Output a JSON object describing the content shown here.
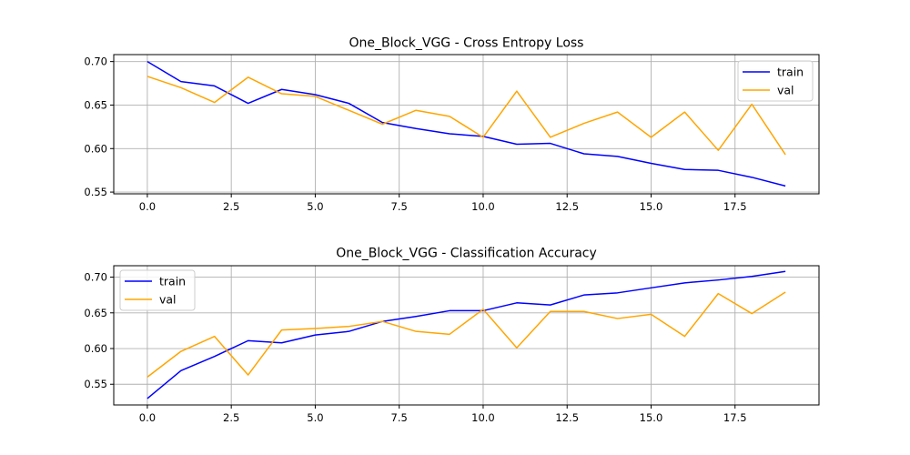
{
  "colors": {
    "train": "#0000ff",
    "val": "#ffa500"
  },
  "chart_data": [
    {
      "type": "line",
      "title": "One_Block_VGG - Cross Entropy Loss",
      "xlabel": "",
      "ylabel": "",
      "x": [
        0,
        1,
        2,
        3,
        4,
        5,
        6,
        7,
        8,
        9,
        10,
        11,
        12,
        13,
        14,
        15,
        16,
        17,
        18,
        19
      ],
      "xlim": [
        -1,
        20
      ],
      "ylim": [
        0.548,
        0.708
      ],
      "xticks": [
        0.0,
        2.5,
        5.0,
        7.5,
        10.0,
        12.5,
        15.0,
        17.5
      ],
      "xtick_labels": [
        "0.0",
        "2.5",
        "5.0",
        "7.5",
        "10.0",
        "12.5",
        "15.0",
        "17.5"
      ],
      "yticks": [
        0.55,
        0.6,
        0.65,
        0.7
      ],
      "ytick_labels": [
        "0.55",
        "0.60",
        "0.65",
        "0.70"
      ],
      "grid": true,
      "legend_position": "top-right",
      "series": [
        {
          "name": "train",
          "color": "#0000ff",
          "values": [
            0.7,
            0.677,
            0.672,
            0.652,
            0.668,
            0.662,
            0.652,
            0.63,
            0.623,
            0.617,
            0.614,
            0.605,
            0.606,
            0.594,
            0.591,
            0.583,
            0.576,
            0.575,
            0.567,
            0.557
          ]
        },
        {
          "name": "val",
          "color": "#ffa500",
          "values": [
            0.683,
            0.67,
            0.653,
            0.682,
            0.663,
            0.66,
            0.644,
            0.628,
            0.644,
            0.637,
            0.613,
            0.666,
            0.613,
            0.629,
            0.642,
            0.613,
            0.642,
            0.598,
            0.651,
            0.593
          ]
        }
      ]
    },
    {
      "type": "line",
      "title": "One_Block_VGG - Classification Accuracy",
      "xlabel": "",
      "ylabel": "",
      "x": [
        0,
        1,
        2,
        3,
        4,
        5,
        6,
        7,
        8,
        9,
        10,
        11,
        12,
        13,
        14,
        15,
        16,
        17,
        18,
        19
      ],
      "xlim": [
        -1,
        20
      ],
      "ylim": [
        0.521,
        0.716
      ],
      "xticks": [
        0.0,
        2.5,
        5.0,
        7.5,
        10.0,
        12.5,
        15.0,
        17.5
      ],
      "xtick_labels": [
        "0.0",
        "2.5",
        "5.0",
        "7.5",
        "10.0",
        "12.5",
        "15.0",
        "17.5"
      ],
      "yticks": [
        0.55,
        0.6,
        0.65,
        0.7
      ],
      "ytick_labels": [
        "0.55",
        "0.60",
        "0.65",
        "0.70"
      ],
      "grid": true,
      "legend_position": "top-left",
      "series": [
        {
          "name": "train",
          "color": "#0000ff",
          "values": [
            0.53,
            0.569,
            0.589,
            0.611,
            0.608,
            0.619,
            0.624,
            0.638,
            0.645,
            0.653,
            0.653,
            0.664,
            0.661,
            0.675,
            0.678,
            0.685,
            0.692,
            0.696,
            0.701,
            0.708
          ]
        },
        {
          "name": "val",
          "color": "#ffa500",
          "values": [
            0.56,
            0.596,
            0.617,
            0.563,
            0.626,
            0.628,
            0.631,
            0.638,
            0.624,
            0.62,
            0.655,
            0.601,
            0.652,
            0.652,
            0.642,
            0.648,
            0.617,
            0.677,
            0.649,
            0.679
          ]
        }
      ]
    }
  ]
}
